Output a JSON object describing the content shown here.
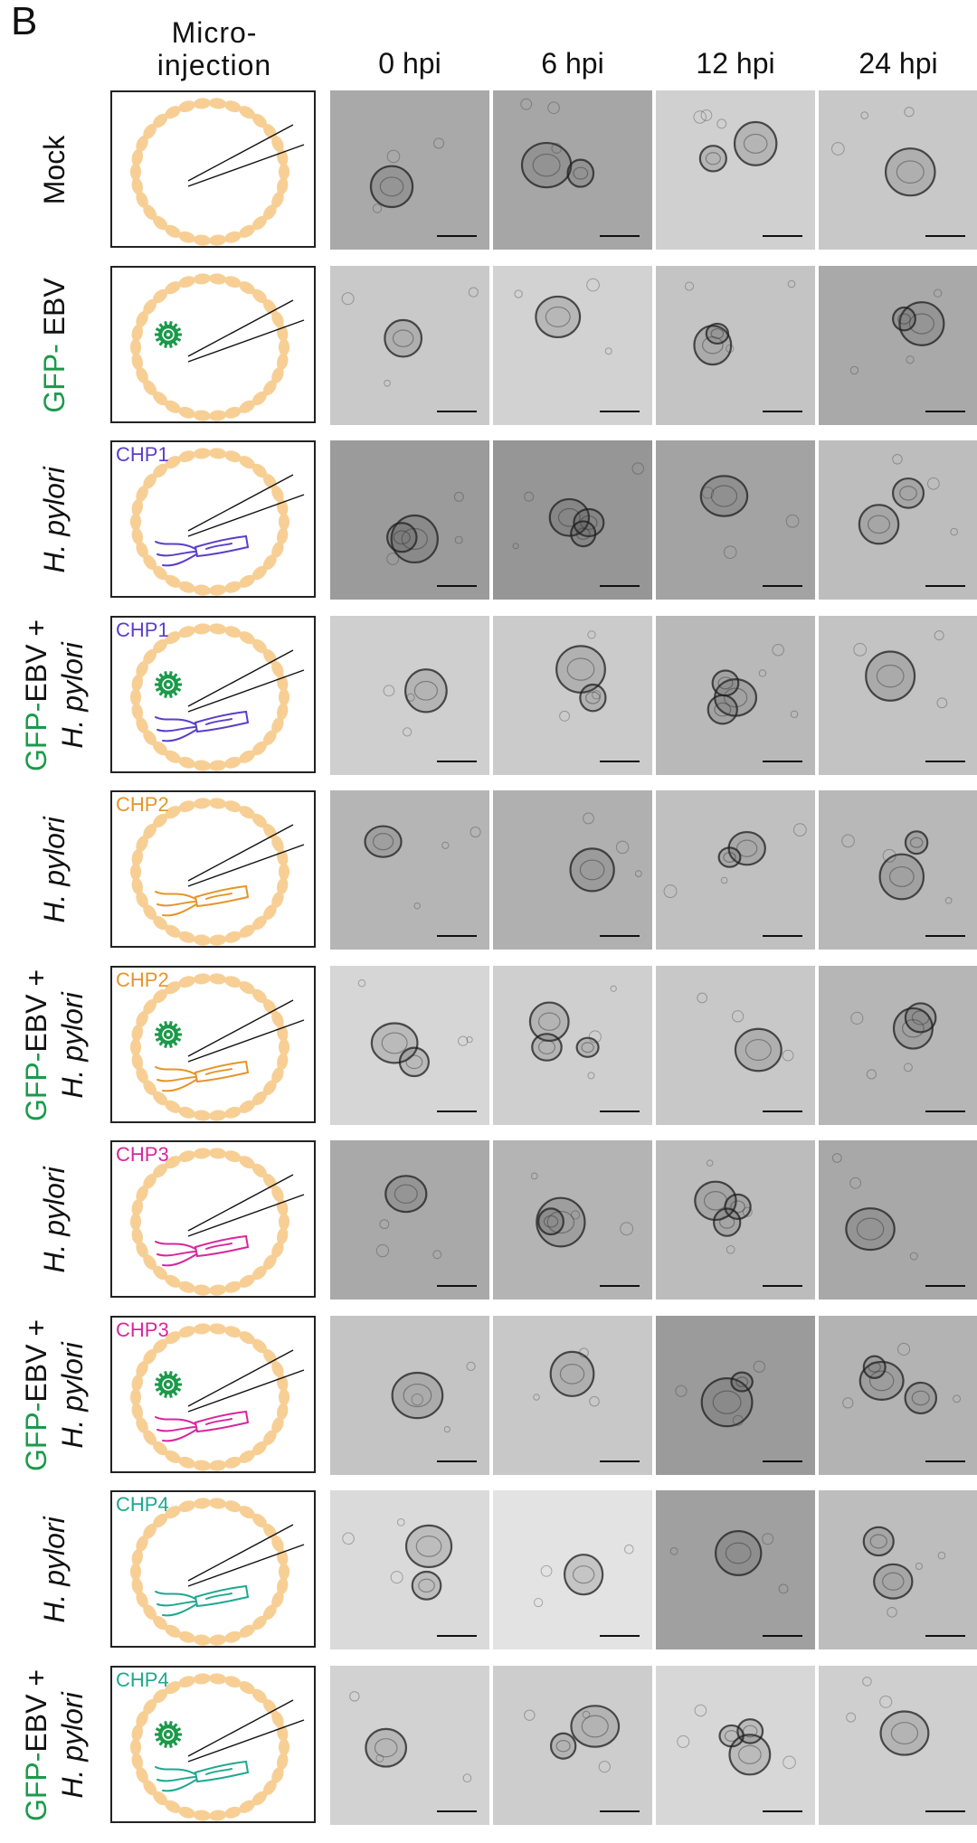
{
  "panel_letter": "B",
  "microinjection_title": [
    "Micro-",
    "injection"
  ],
  "timepoints": [
    "0 hpi",
    "6 hpi",
    "12 hpi",
    "24 hpi"
  ],
  "colors": {
    "gfp_green": "#1a9a4a",
    "organoid_cells": "#f7cf95",
    "CHP1": "#5a3fc8",
    "CHP2": "#e5952a",
    "CHP3": "#d7279c",
    "CHP4": "#1fa890"
  },
  "rows": [
    {
      "label_parts": [
        {
          "text": "Mock",
          "style": "plain"
        }
      ],
      "strain": "",
      "ebv": false,
      "bacteria_color": null,
      "tones": [
        "#a9a9a9",
        "#a6a6a6",
        "#d0d0d0",
        "#c8c8c8"
      ]
    },
    {
      "label_parts": [
        {
          "text": "GFP-",
          "style": "green"
        },
        {
          "text": " EBV",
          "style": "plain"
        }
      ],
      "strain": "",
      "ebv": true,
      "bacteria_color": null,
      "tones": [
        "#c9c9c9",
        "#d2d2d2",
        "#c4c4c4",
        "#a9a9a9"
      ]
    },
    {
      "label_parts": [
        {
          "text": "H. pylori",
          "style": "italic"
        }
      ],
      "strain": "CHP1",
      "ebv": false,
      "bacteria_color": "CHP1",
      "tones": [
        "#9b9b9b",
        "#969696",
        "#a3a3a3",
        "#bdbdbd"
      ]
    },
    {
      "label_parts": [
        {
          "text": "GFP-",
          "style": "green"
        },
        {
          "text": "EBV +",
          "style": "plain"
        },
        {
          "text": "|",
          "style": "break"
        },
        {
          "text": "H. pylori",
          "style": "italic"
        }
      ],
      "strain": "CHP1",
      "ebv": true,
      "bacteria_color": "CHP1",
      "tones": [
        "#cfcfcf",
        "#cbcbcb",
        "#b9b9b9",
        "#c3c3c3"
      ]
    },
    {
      "label_parts": [
        {
          "text": "H. pylori",
          "style": "italic"
        }
      ],
      "strain": "CHP2",
      "ebv": false,
      "bacteria_color": "CHP2",
      "tones": [
        "#b5b5b5",
        "#b0b0b0",
        "#c0c0c0",
        "#b8b8b8"
      ]
    },
    {
      "label_parts": [
        {
          "text": "GFP-",
          "style": "green"
        },
        {
          "text": "EBV +",
          "style": "plain"
        },
        {
          "text": "|",
          "style": "break"
        },
        {
          "text": "H. pylori",
          "style": "italic"
        }
      ],
      "strain": "CHP2",
      "ebv": true,
      "bacteria_color": "CHP2",
      "tones": [
        "#d6d6d6",
        "#cfcfcf",
        "#c8c8c8",
        "#b6b6b6"
      ]
    },
    {
      "label_parts": [
        {
          "text": "H. pylori",
          "style": "italic"
        }
      ],
      "strain": "CHP3",
      "ebv": false,
      "bacteria_color": "CHP3",
      "tones": [
        "#a9a9a9",
        "#b4b4b4",
        "#bcbcbc",
        "#a8a8a8"
      ]
    },
    {
      "label_parts": [
        {
          "text": "GFP-",
          "style": "green"
        },
        {
          "text": "EBV +",
          "style": "plain"
        },
        {
          "text": "|",
          "style": "break"
        },
        {
          "text": "H. pylori",
          "style": "italic"
        }
      ],
      "strain": "CHP3",
      "ebv": true,
      "bacteria_color": "CHP3",
      "tones": [
        "#c4c4c4",
        "#c8c8c8",
        "#9b9b9b",
        "#b3b3b3"
      ]
    },
    {
      "label_parts": [
        {
          "text": "H. pylori",
          "style": "italic"
        }
      ],
      "strain": "CHP4",
      "ebv": false,
      "bacteria_color": "CHP4",
      "tones": [
        "#dadada",
        "#e3e3e3",
        "#a0a0a0",
        "#bdbdbd"
      ]
    },
    {
      "label_parts": [
        {
          "text": "GFP-",
          "style": "green"
        },
        {
          "text": "EBV +",
          "style": "plain"
        },
        {
          "text": "|",
          "style": "break"
        },
        {
          "text": "H. pylori",
          "style": "italic"
        }
      ],
      "strain": "CHP4",
      "ebv": true,
      "bacteria_color": "CHP4",
      "tones": [
        "#d2d2d2",
        "#cdcdcd",
        "#d7d7d7",
        "#cfcfcf"
      ]
    }
  ]
}
